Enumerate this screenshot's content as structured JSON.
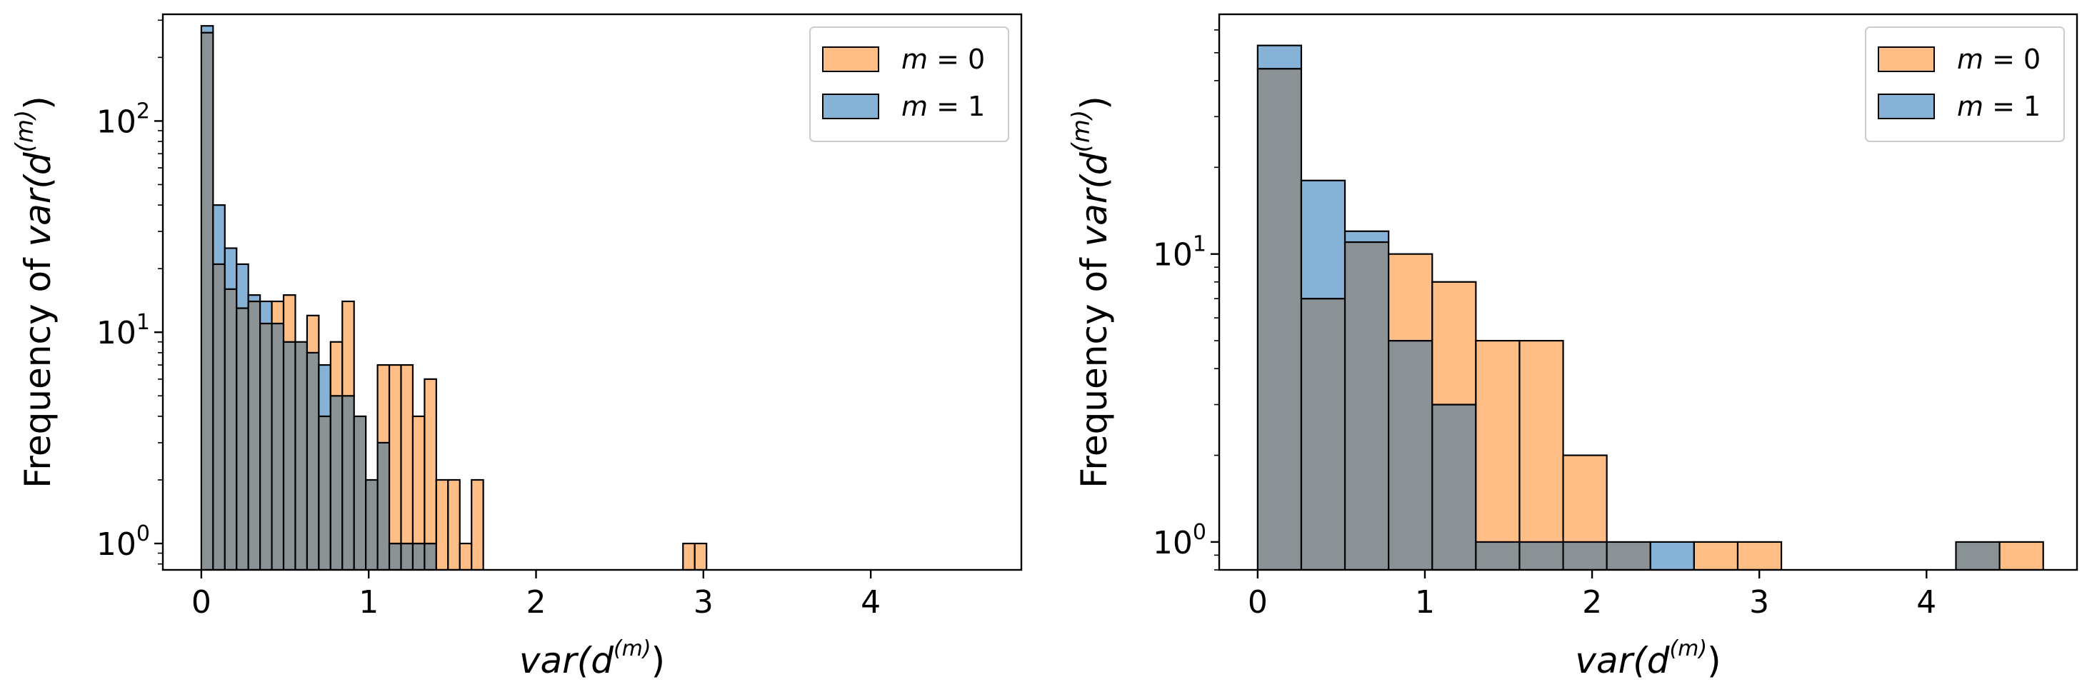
{
  "colors": {
    "m0_fill": "#ffbe86",
    "m1_fill": "#87b2d7",
    "overlap_fill": "#8a9296",
    "edge": "#000000"
  },
  "chart_data": [
    {
      "type": "histogram",
      "yscale": "log",
      "xlabel": {
        "base": "var(d",
        "sup": "(m)",
        "close": ")"
      },
      "ylabel": {
        "prefix": "Frequency of ",
        "base": "var(d",
        "sup": "(m)",
        "close": ")"
      },
      "xlim": [
        -0.23,
        4.9
      ],
      "ylim": [
        0.75,
        320
      ],
      "xticks": [
        0,
        1,
        2,
        3,
        4
      ],
      "xtick_labels": [
        "0",
        "1",
        "2",
        "3",
        "4"
      ],
      "yticks": [
        1,
        10,
        100
      ],
      "ytick_labels": [
        {
          "base": "10",
          "sup": "0"
        },
        {
          "base": "10",
          "sup": "1"
        },
        {
          "base": "10",
          "sup": "2"
        }
      ],
      "legend": {
        "placement": "top-right",
        "entries": [
          {
            "var": "m",
            "text": " = 0"
          },
          {
            "var": "m",
            "text": " = 1"
          }
        ]
      },
      "bin_start": 0.0,
      "bin_width": 0.0702,
      "series": [
        {
          "name": "m = 0",
          "counts": [
            262,
            21,
            16,
            13,
            14,
            11,
            14,
            15,
            9,
            12,
            4,
            9,
            14,
            4,
            2,
            7,
            7,
            7,
            4,
            6,
            2,
            2,
            1,
            2,
            0,
            0,
            0,
            0,
            0,
            0,
            0,
            0,
            0,
            0,
            0,
            0,
            0,
            0,
            0,
            0,
            0,
            1,
            1,
            0,
            0,
            0,
            0,
            0,
            0,
            0,
            0,
            0,
            0,
            0,
            0,
            0,
            0,
            0,
            0,
            0,
            0,
            0,
            0,
            0,
            0,
            0,
            0
          ]
        },
        {
          "name": "m = 1",
          "counts": [
            282,
            40,
            25,
            21,
            15,
            14,
            11,
            9,
            9,
            8,
            7,
            5,
            5,
            4,
            2,
            3,
            1,
            1,
            1,
            1,
            0,
            0,
            0,
            0,
            0,
            0,
            0,
            0,
            0,
            0,
            0,
            0,
            0,
            0,
            0,
            0,
            0,
            0,
            0,
            0,
            0,
            0,
            0,
            0,
            0,
            0,
            0,
            0,
            0,
            0,
            0,
            0,
            0,
            0,
            0,
            0,
            0,
            0,
            0,
            0,
            0,
            0,
            0,
            0,
            0,
            0,
            0
          ]
        }
      ]
    },
    {
      "type": "histogram",
      "yscale": "log",
      "xlabel": {
        "base": "var(d",
        "sup": "(m)",
        "close": ")"
      },
      "ylabel": {
        "prefix": "Frequency of ",
        "base": "var(d",
        "sup": "(m)",
        "close": ")"
      },
      "xlim": [
        -0.23,
        4.9
      ],
      "ylim": [
        0.8,
        68
      ],
      "xticks": [
        0,
        1,
        2,
        3,
        4
      ],
      "xtick_labels": [
        "0",
        "1",
        "2",
        "3",
        "4"
      ],
      "yticks": [
        1,
        10
      ],
      "ytick_labels": [
        {
          "base": "10",
          "sup": "0"
        },
        {
          "base": "10",
          "sup": "1"
        }
      ],
      "legend": {
        "placement": "top-right",
        "entries": [
          {
            "var": "m",
            "text": " = 0"
          },
          {
            "var": "m",
            "text": " = 1"
          }
        ]
      },
      "bin_start": 0.0,
      "bin_width": 0.261,
      "series": [
        {
          "name": "m = 0",
          "counts": [
            44,
            7,
            11,
            10,
            8,
            5,
            5,
            2,
            1,
            0,
            1,
            1,
            0,
            0,
            0,
            0,
            1,
            1
          ]
        },
        {
          "name": "m = 1",
          "counts": [
            53,
            18,
            12,
            5,
            3,
            1,
            1,
            1,
            1,
            1,
            0,
            0,
            0,
            0,
            0,
            0,
            1,
            0
          ]
        }
      ]
    }
  ]
}
